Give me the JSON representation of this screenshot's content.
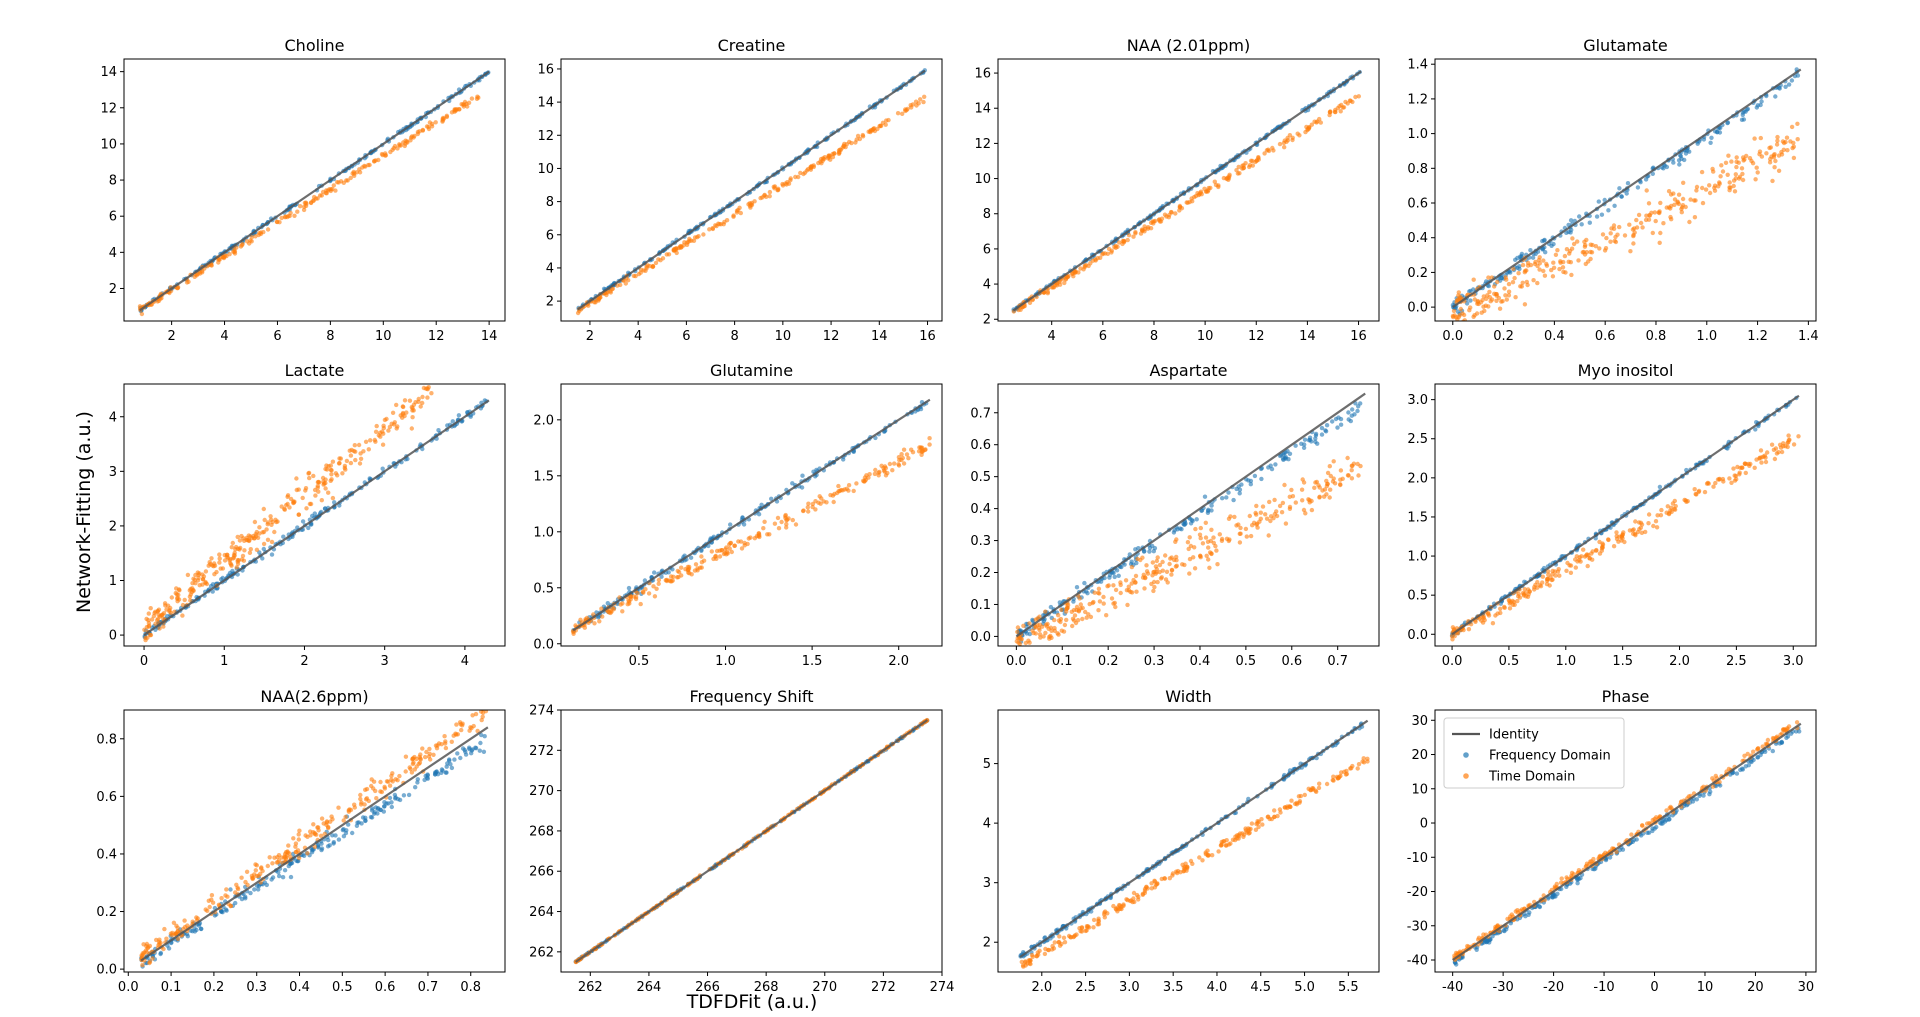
{
  "figure": {
    "ylabel": "Network-Fitting (a.u.)",
    "xlabel": "TDFDFit (a.u.)"
  },
  "colors": {
    "identity": "#555555",
    "frequency": "#1f77b4",
    "time": "#ff7f0e"
  },
  "legend": {
    "location": "upper-left of Phase panel",
    "entries": [
      "Identity",
      "Frequency Domain",
      "Time Domain"
    ]
  },
  "chart_data": [
    {
      "type": "scatter",
      "title": "Choline",
      "xlim": [
        0.2,
        14.6
      ],
      "ylim": [
        0.2,
        14.7
      ],
      "xticks": [
        2,
        4,
        6,
        8,
        10,
        12,
        14
      ],
      "yticks": [
        2,
        4,
        6,
        8,
        10,
        12,
        14
      ],
      "identity": [
        0.8,
        14.0
      ],
      "series": [
        {
          "name": "Frequency Domain",
          "x_range": [
            0.8,
            14.0
          ],
          "slope": 1.0,
          "intercept": 0.0,
          "noise": 0.05,
          "n": 200
        },
        {
          "name": "Time Domain",
          "x_range": [
            0.8,
            14.0
          ],
          "slope": 0.928,
          "intercept": 0.05,
          "noise": 0.08,
          "n": 220
        }
      ]
    },
    {
      "type": "scatter",
      "title": "Creatine",
      "xlim": [
        0.8,
        16.6
      ],
      "ylim": [
        0.8,
        16.6
      ],
      "xticks": [
        2,
        4,
        6,
        8,
        10,
        12,
        14,
        16
      ],
      "yticks": [
        2,
        4,
        6,
        8,
        10,
        12,
        14,
        16
      ],
      "identity": [
        1.5,
        15.9
      ],
      "series": [
        {
          "name": "Frequency Domain",
          "x_range": [
            1.5,
            15.9
          ],
          "slope": 1.0,
          "intercept": 0.0,
          "noise": 0.05,
          "n": 200
        },
        {
          "name": "Time Domain",
          "x_range": [
            1.5,
            15.9
          ],
          "slope": 0.89,
          "intercept": 0.1,
          "noise": 0.09,
          "n": 220
        }
      ]
    },
    {
      "type": "scatter",
      "title": "NAA (2.01ppm)",
      "xlim": [
        1.9,
        16.8
      ],
      "ylim": [
        1.9,
        16.8
      ],
      "xticks": [
        4,
        6,
        8,
        10,
        12,
        14,
        16
      ],
      "yticks": [
        2,
        4,
        6,
        8,
        10,
        12,
        14,
        16
      ],
      "identity": [
        2.5,
        16.1
      ],
      "series": [
        {
          "name": "Frequency Domain",
          "x_range": [
            2.5,
            16.1
          ],
          "slope": 1.0,
          "intercept": 0.0,
          "noise": 0.05,
          "n": 200
        },
        {
          "name": "Time Domain",
          "x_range": [
            2.5,
            16.1
          ],
          "slope": 0.905,
          "intercept": 0.2,
          "noise": 0.1,
          "n": 230
        }
      ]
    },
    {
      "type": "scatter",
      "title": "Glutamate",
      "xlim": [
        -0.07,
        1.43
      ],
      "ylim": [
        -0.08,
        1.43
      ],
      "xticks": [
        0.0,
        0.2,
        0.4,
        0.6,
        0.8,
        1.0,
        1.2,
        1.4
      ],
      "yticks": [
        0.0,
        0.2,
        0.4,
        0.6,
        0.8,
        1.0,
        1.2,
        1.4
      ],
      "identity": [
        0.0,
        1.37
      ],
      "series": [
        {
          "name": "Frequency Domain",
          "x_range": [
            0.0,
            1.36
          ],
          "slope": 0.98,
          "intercept": 0.0,
          "noise": 0.02,
          "n": 220
        },
        {
          "name": "Time Domain",
          "x_range": [
            0.0,
            1.36
          ],
          "slope": 0.72,
          "intercept": -0.04,
          "noise": 0.06,
          "n": 320
        }
      ]
    },
    {
      "type": "scatter",
      "title": "Lactate",
      "xlim": [
        -0.25,
        4.5
      ],
      "ylim": [
        -0.2,
        4.6
      ],
      "xticks": [
        0,
        1,
        2,
        3,
        4
      ],
      "yticks": [
        0,
        1,
        2,
        3,
        4
      ],
      "identity": [
        0.0,
        4.3
      ],
      "series": [
        {
          "name": "Frequency Domain",
          "x_range": [
            0.0,
            4.3
          ],
          "slope": 1.0,
          "intercept": 0.0,
          "noise": 0.04,
          "n": 220
        },
        {
          "name": "Time Domain",
          "x_range": [
            0.0,
            3.6
          ],
          "slope": 1.2,
          "intercept": 0.15,
          "noise": 0.14,
          "n": 320
        }
      ]
    },
    {
      "type": "scatter",
      "title": "Glutamine",
      "xlim": [
        0.05,
        2.25
      ],
      "ylim": [
        -0.02,
        2.32
      ],
      "xticks": [
        0.5,
        1.0,
        1.5,
        2.0
      ],
      "yticks": [
        0.0,
        0.5,
        1.0,
        1.5,
        2.0
      ],
      "identity": [
        0.12,
        2.18
      ],
      "series": [
        {
          "name": "Frequency Domain",
          "x_range": [
            0.12,
            2.18
          ],
          "slope": 1.0,
          "intercept": 0.0,
          "noise": 0.02,
          "n": 200
        },
        {
          "name": "Time Domain",
          "x_range": [
            0.12,
            2.18
          ],
          "slope": 0.8,
          "intercept": 0.03,
          "noise": 0.03,
          "n": 240
        }
      ]
    },
    {
      "type": "scatter",
      "title": "Aspartate",
      "xlim": [
        -0.04,
        0.79
      ],
      "ylim": [
        -0.03,
        0.79
      ],
      "xticks": [
        0.0,
        0.1,
        0.2,
        0.3,
        0.4,
        0.5,
        0.6,
        0.7
      ],
      "yticks": [
        0.0,
        0.1,
        0.2,
        0.3,
        0.4,
        0.5,
        0.6,
        0.7
      ],
      "identity": [
        0.0,
        0.76
      ],
      "series": [
        {
          "name": "Frequency Domain",
          "x_range": [
            0.0,
            0.75
          ],
          "slope": 0.96,
          "intercept": 0.0,
          "noise": 0.012,
          "n": 220
        },
        {
          "name": "Time Domain",
          "x_range": [
            0.0,
            0.75
          ],
          "slope": 0.73,
          "intercept": -0.02,
          "noise": 0.03,
          "n": 320
        }
      ]
    },
    {
      "type": "scatter",
      "title": "Myo inositol",
      "xlim": [
        -0.15,
        3.2
      ],
      "ylim": [
        -0.15,
        3.2
      ],
      "xticks": [
        0.0,
        0.5,
        1.0,
        1.5,
        2.0,
        2.5,
        3.0
      ],
      "yticks": [
        0.0,
        0.5,
        1.0,
        1.5,
        2.0,
        2.5,
        3.0
      ],
      "identity": [
        0.0,
        3.05
      ],
      "series": [
        {
          "name": "Frequency Domain",
          "x_range": [
            0.0,
            3.05
          ],
          "slope": 1.0,
          "intercept": 0.0,
          "noise": 0.015,
          "n": 200
        },
        {
          "name": "Time Domain",
          "x_range": [
            0.0,
            3.05
          ],
          "slope": 0.83,
          "intercept": 0.0,
          "noise": 0.05,
          "n": 260
        }
      ]
    },
    {
      "type": "scatter",
      "title": "NAA(2.6ppm)",
      "xlim": [
        -0.01,
        0.88
      ],
      "ylim": [
        -0.01,
        0.9
      ],
      "xticks": [
        0.0,
        0.1,
        0.2,
        0.3,
        0.4,
        0.5,
        0.6,
        0.7,
        0.8
      ],
      "yticks": [
        0.0,
        0.2,
        0.4,
        0.6,
        0.8
      ],
      "identity": [
        0.03,
        0.84
      ],
      "series": [
        {
          "name": "Frequency Domain",
          "x_range": [
            0.03,
            0.84
          ],
          "slope": 0.95,
          "intercept": 0.0,
          "noise": 0.015,
          "n": 240
        },
        {
          "name": "Time Domain",
          "x_range": [
            0.03,
            0.84
          ],
          "slope": 1.05,
          "intercept": 0.01,
          "noise": 0.02,
          "n": 280
        }
      ]
    },
    {
      "type": "scatter",
      "title": "Frequency Shift",
      "xlim": [
        261.0,
        274.0
      ],
      "ylim": [
        261.0,
        274.0
      ],
      "xticks": [
        262,
        264,
        266,
        268,
        270,
        272,
        274
      ],
      "yticks": [
        262,
        264,
        266,
        268,
        270,
        272,
        274
      ],
      "identity": [
        261.5,
        273.5
      ],
      "series": [
        {
          "name": "Frequency Domain",
          "x_range": [
            261.5,
            273.5
          ],
          "slope": 1.0,
          "intercept": 0.0,
          "noise": 0.02,
          "n": 160
        },
        {
          "name": "Time Domain",
          "x_range": [
            261.5,
            273.5
          ],
          "slope": 1.0,
          "intercept": 0.0,
          "noise": 0.02,
          "n": 200
        }
      ]
    },
    {
      "type": "scatter",
      "title": "Width",
      "xlim": [
        1.5,
        5.85
      ],
      "ylim": [
        1.5,
        5.9
      ],
      "xticks": [
        2.0,
        2.5,
        3.0,
        3.5,
        4.0,
        4.5,
        5.0,
        5.5
      ],
      "yticks": [
        2,
        3,
        4,
        5
      ],
      "identity": [
        1.75,
        5.72
      ],
      "series": [
        {
          "name": "Frequency Domain",
          "x_range": [
            1.75,
            5.72
          ],
          "slope": 1.0,
          "intercept": 0.0,
          "noise": 0.02,
          "n": 200
        },
        {
          "name": "Time Domain",
          "x_range": [
            1.75,
            5.72
          ],
          "slope": 0.88,
          "intercept": 0.05,
          "noise": 0.04,
          "n": 240
        }
      ]
    },
    {
      "type": "scatter",
      "title": "Phase",
      "xlim": [
        -43.5,
        32.0
      ],
      "ylim": [
        -43.5,
        33.0
      ],
      "xticks": [
        -40,
        -30,
        -20,
        -10,
        0,
        10,
        20,
        30
      ],
      "yticks": [
        -40,
        -30,
        -20,
        -10,
        0,
        10,
        20,
        30
      ],
      "identity": [
        -40.0,
        29.0
      ],
      "series": [
        {
          "name": "Frequency Domain",
          "x_range": [
            -40.0,
            29.0
          ],
          "slope": 1.0,
          "intercept": -1.0,
          "noise": 0.5,
          "n": 220
        },
        {
          "name": "Time Domain",
          "x_range": [
            -40.0,
            29.0
          ],
          "slope": 1.0,
          "intercept": 0.5,
          "noise": 0.6,
          "n": 240
        }
      ]
    }
  ]
}
